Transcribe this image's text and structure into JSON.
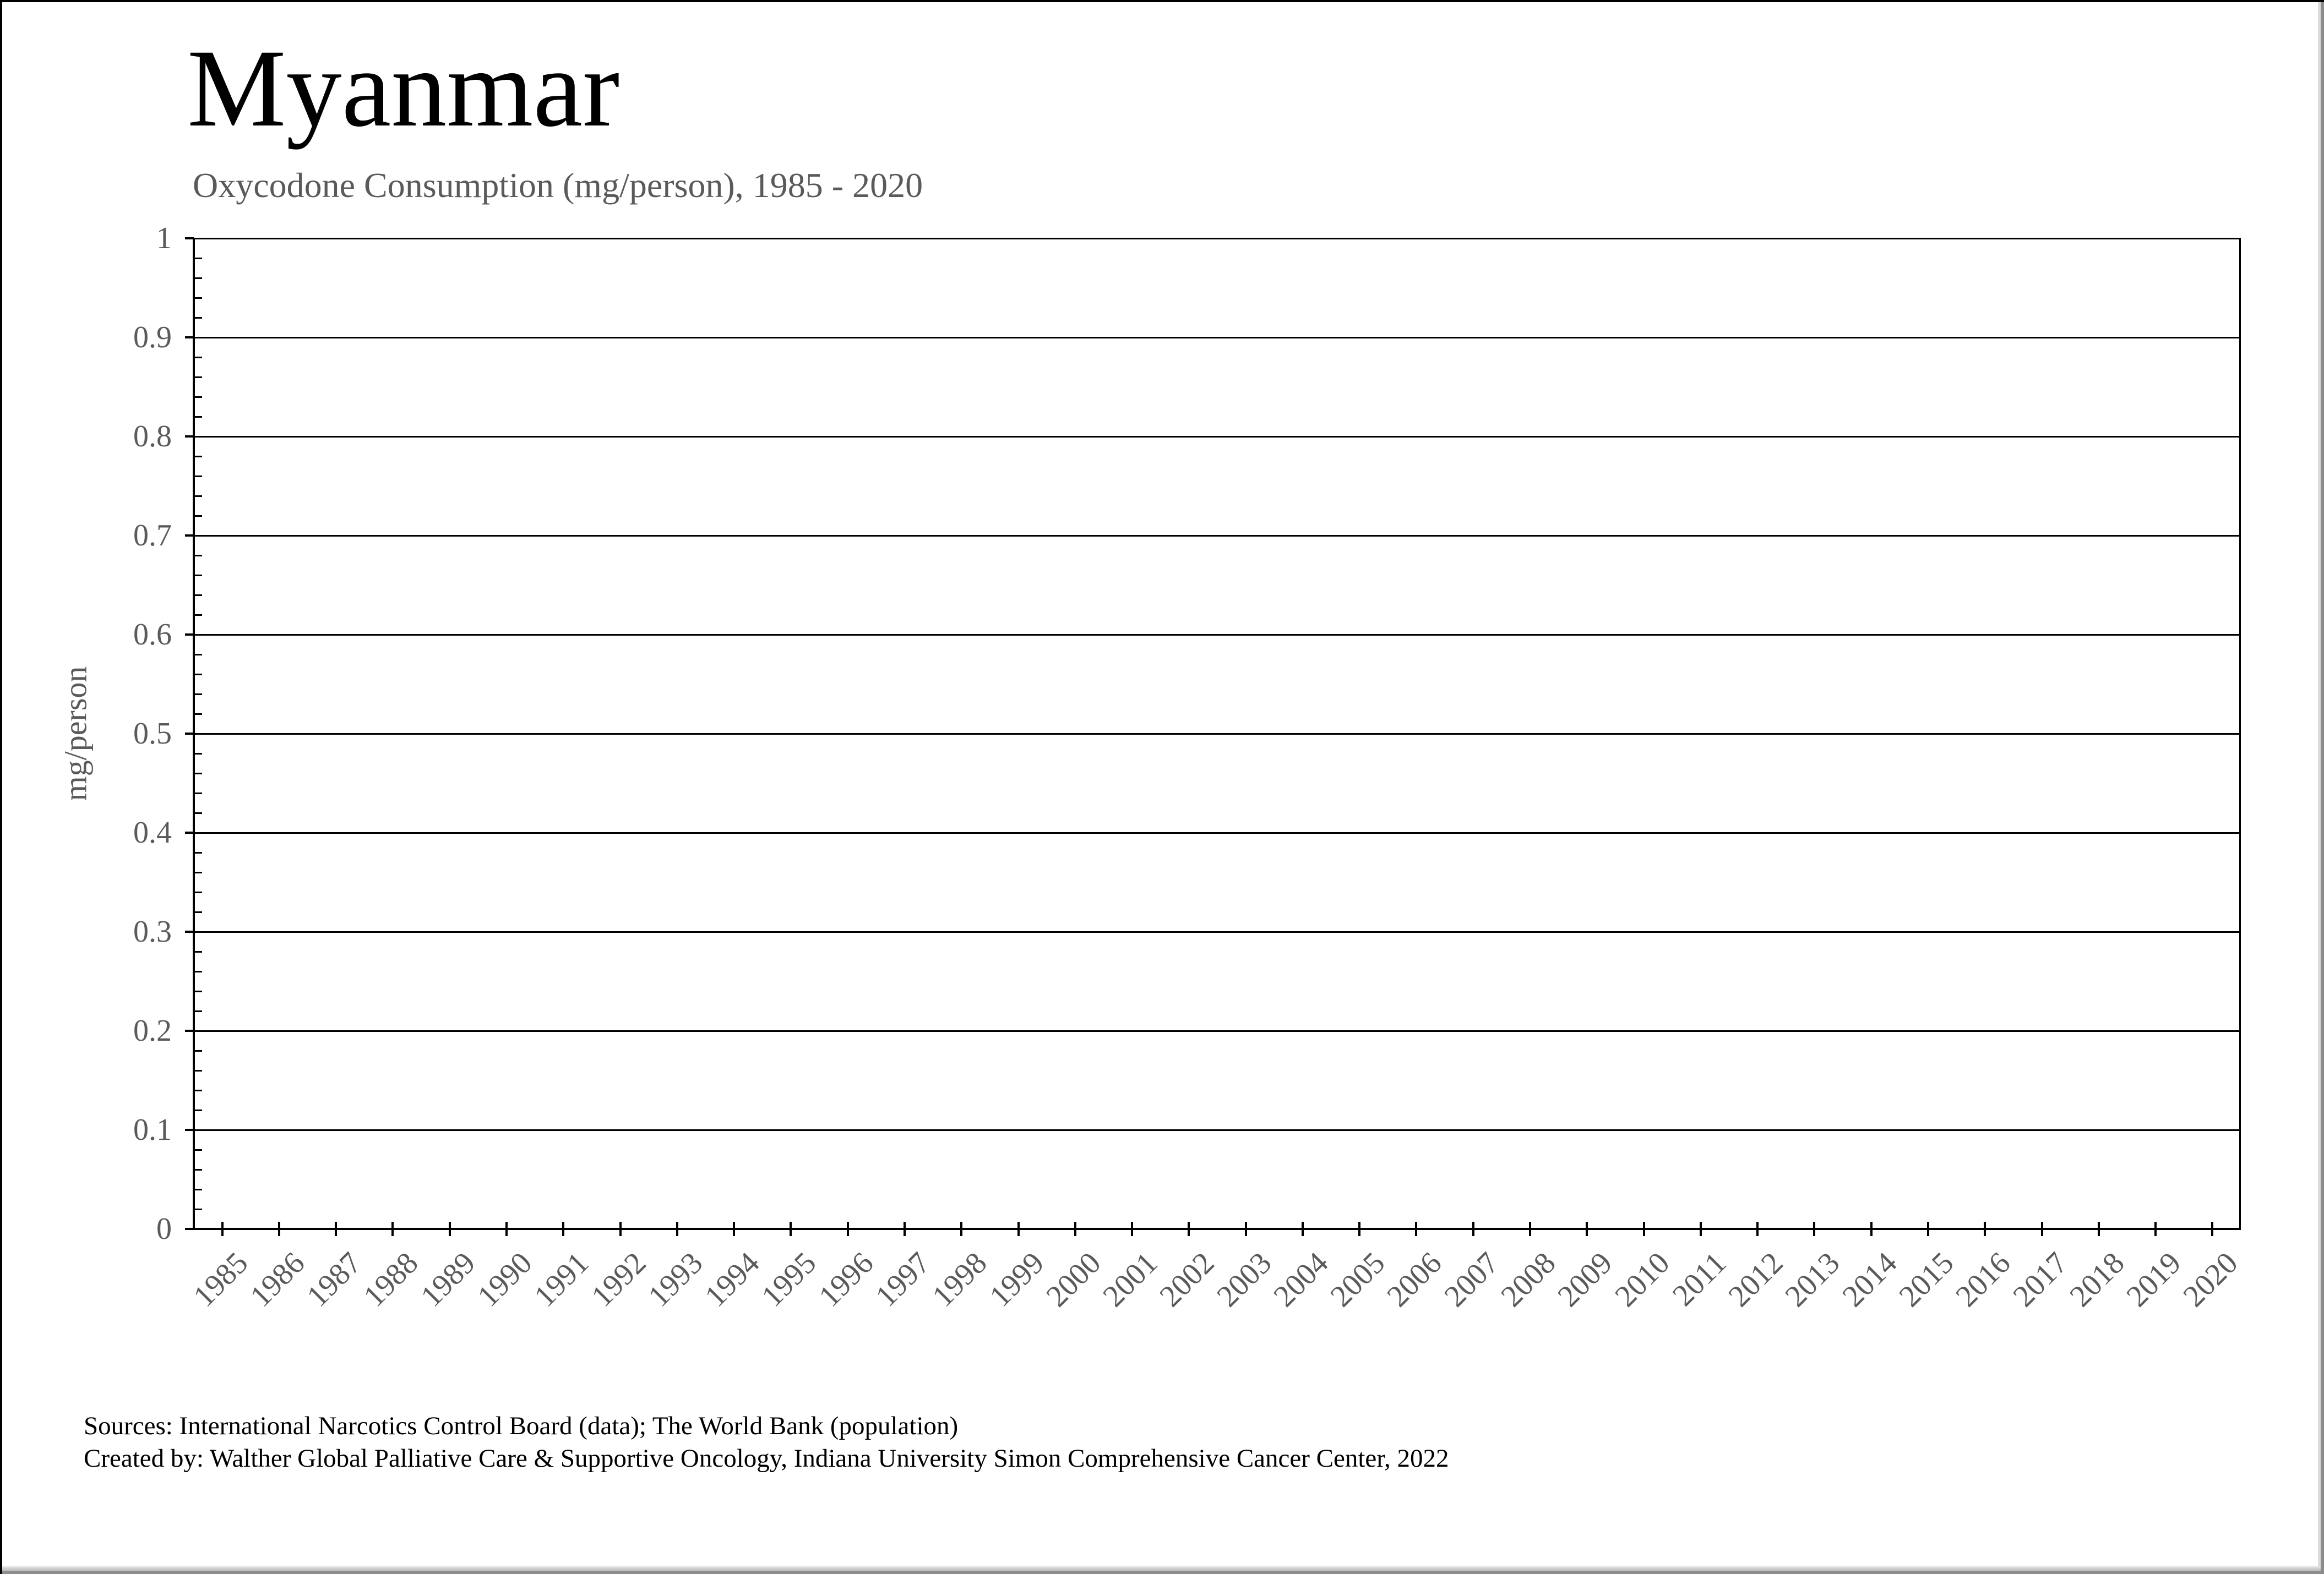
{
  "chart_data": {
    "type": "line",
    "title": "Myanmar",
    "subtitle": "Oxycodone Consumption (mg/person), 1985 - 2020",
    "xlabel": "",
    "ylabel": "mg/person",
    "ylim": [
      0,
      1
    ],
    "ytick_labels": [
      "0",
      "0.1",
      "0.2",
      "0.3",
      "0.4",
      "0.5",
      "0.6",
      "0.7",
      "0.8",
      "0.9",
      "1"
    ],
    "y_minor_ticks_per_major": 5,
    "categories": [
      "1985",
      "1986",
      "1987",
      "1988",
      "1989",
      "1990",
      "1991",
      "1992",
      "1993",
      "1994",
      "1995",
      "1996",
      "1997",
      "1998",
      "1999",
      "2000",
      "2001",
      "2002",
      "2003",
      "2004",
      "2005",
      "2006",
      "2007",
      "2008",
      "2009",
      "2010",
      "2011",
      "2012",
      "2013",
      "2014",
      "2015",
      "2016",
      "2017",
      "2018",
      "2019",
      "2020"
    ],
    "series": [],
    "grid": "horizontal-major",
    "legend_position": "none"
  },
  "footer": {
    "sources": "Sources: International Narcotics Control Board (data); The World Bank (population)",
    "created_by": "Created by: Walther Global Palliative Care & Supportive Oncology, Indiana University Simon Comprehensive Cancer Center, 2022"
  },
  "colors": {
    "background": "#ffffff",
    "axis": "#000000",
    "gridline": "#000000",
    "title_text": "#000000",
    "secondary_text": "#5a5a5a"
  }
}
